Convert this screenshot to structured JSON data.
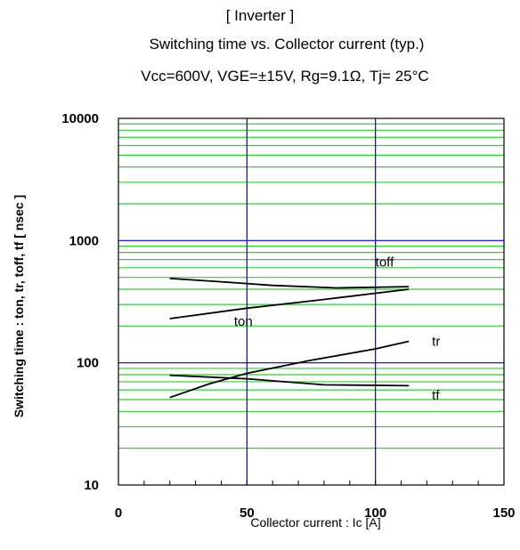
{
  "titles": {
    "line1": "[ Inverter ]",
    "line2": "Switching time  vs.  Collector current  (typ.)",
    "line3": "Vcc=600V, VGE=±15V, Rg=9.1Ω, Tj= 25°C"
  },
  "chart_data": {
    "type": "line",
    "xlabel": "Collector current : Ic [A]",
    "ylabel": "Switching time  :  ton, tr, toff, tf  [ nsec ]",
    "xlim": [
      0,
      150
    ],
    "ylim": [
      10,
      10000
    ],
    "yscale": "log",
    "grid": true,
    "xticks": [
      0,
      50,
      100,
      150
    ],
    "yticks": [
      10,
      100,
      1000,
      10000
    ],
    "xtick_labels": [
      "0",
      "50",
      "100",
      "150"
    ],
    "ytick_labels": [
      "10",
      "100",
      "1000",
      "10000"
    ],
    "colors": {
      "major_grid": "#0000cc",
      "minor_grid": "#33cc33",
      "curve": "#000000"
    },
    "series": [
      {
        "name": "toff",
        "x": [
          20,
          40,
          60,
          85,
          113
        ],
        "y": [
          490,
          460,
          430,
          410,
          420
        ]
      },
      {
        "name": "ton",
        "x": [
          20,
          50,
          80,
          113
        ],
        "y": [
          230,
          280,
          330,
          400
        ]
      },
      {
        "name": "tr",
        "x": [
          20,
          35,
          50,
          75,
          100,
          113
        ],
        "y": [
          52,
          67,
          82,
          105,
          130,
          150
        ]
      },
      {
        "name": "tf",
        "x": [
          20,
          50,
          80,
          113
        ],
        "y": [
          79,
          74,
          66,
          65
        ]
      }
    ]
  }
}
